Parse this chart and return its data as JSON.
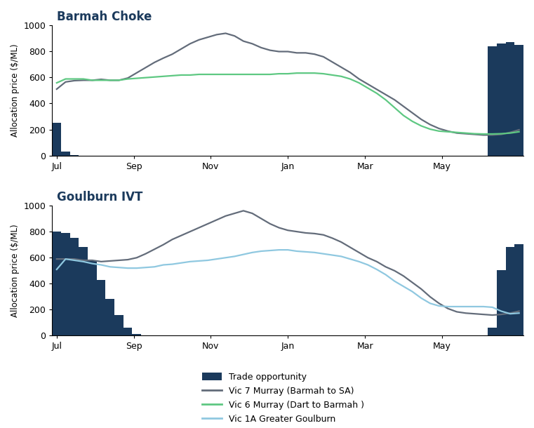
{
  "top_title": "Barmah Choke",
  "bottom_title": "Goulburn IVT",
  "ylabel": "Allocation price ($/ML)",
  "ylim": [
    0,
    1000
  ],
  "yticks": [
    0,
    200,
    400,
    600,
    800,
    1000
  ],
  "xtick_labels": [
    "Jul",
    "Sep",
    "Nov",
    "Jan",
    "Mar",
    "May"
  ],
  "n_weeks": 53,
  "bar_color": "#1b3a5c",
  "line1_color": "#636c7a",
  "line2_color": "#5ec882",
  "line3_color": "#8fc8e0",
  "trade_opp_top": [
    250,
    30,
    5,
    0,
    0,
    0,
    0,
    0,
    0,
    0,
    0,
    0,
    0,
    0,
    0,
    0,
    0,
    0,
    0,
    0,
    0,
    0,
    0,
    0,
    0,
    0,
    0,
    0,
    0,
    0,
    0,
    0,
    0,
    0,
    0,
    0,
    0,
    0,
    0,
    0,
    0,
    0,
    0,
    0,
    0,
    0,
    0,
    0,
    0,
    840,
    860,
    870,
    850
  ],
  "trade_opp_bottom": [
    800,
    790,
    750,
    680,
    580,
    430,
    280,
    160,
    60,
    15,
    0,
    0,
    0,
    0,
    0,
    0,
    0,
    0,
    0,
    0,
    0,
    0,
    0,
    0,
    0,
    0,
    0,
    0,
    0,
    0,
    0,
    0,
    0,
    0,
    0,
    0,
    0,
    0,
    0,
    0,
    0,
    0,
    0,
    0,
    0,
    0,
    0,
    0,
    0,
    60,
    500,
    680,
    700
  ],
  "vic7_top": [
    510,
    565,
    575,
    578,
    578,
    585,
    578,
    578,
    595,
    635,
    675,
    715,
    748,
    778,
    818,
    858,
    888,
    908,
    928,
    938,
    918,
    878,
    858,
    828,
    808,
    798,
    798,
    788,
    788,
    778,
    758,
    718,
    678,
    638,
    588,
    548,
    508,
    468,
    428,
    378,
    328,
    278,
    238,
    208,
    188,
    173,
    168,
    163,
    158,
    158,
    163,
    178,
    198
  ],
  "vic6_top": [
    558,
    588,
    588,
    588,
    578,
    578,
    578,
    578,
    588,
    593,
    598,
    603,
    608,
    613,
    618,
    618,
    623,
    623,
    623,
    623,
    623,
    623,
    623,
    623,
    623,
    628,
    628,
    633,
    633,
    633,
    628,
    618,
    608,
    588,
    558,
    518,
    478,
    428,
    368,
    308,
    263,
    228,
    203,
    188,
    183,
    178,
    173,
    168,
    166,
    166,
    168,
    173,
    183
  ],
  "vic7_bottom": [
    588,
    588,
    588,
    578,
    578,
    568,
    573,
    578,
    583,
    598,
    628,
    663,
    698,
    738,
    768,
    798,
    828,
    858,
    888,
    918,
    938,
    958,
    938,
    898,
    858,
    828,
    808,
    798,
    788,
    783,
    773,
    748,
    718,
    678,
    638,
    598,
    568,
    528,
    498,
    458,
    408,
    358,
    298,
    248,
    208,
    183,
    173,
    168,
    163,
    158,
    163,
    173,
    188
  ],
  "vic1a_bottom": [
    508,
    588,
    578,
    568,
    553,
    543,
    528,
    523,
    518,
    518,
    523,
    528,
    543,
    548,
    558,
    568,
    573,
    578,
    588,
    598,
    608,
    623,
    638,
    648,
    653,
    658,
    658,
    648,
    643,
    638,
    628,
    618,
    608,
    588,
    568,
    543,
    508,
    468,
    418,
    378,
    338,
    288,
    248,
    228,
    223,
    223,
    223,
    223,
    223,
    218,
    188,
    168,
    173
  ],
  "legend_labels": [
    "Trade opportunity",
    "Vic 7 Murray (Barmah to SA)",
    "Vic 6 Murray (Dart to Barmah )",
    "Vic 1A Greater Goulburn"
  ],
  "legend_colors": [
    "#1b3a5c",
    "#636c7a",
    "#5ec882",
    "#8fc8e0"
  ],
  "figsize": [
    7.61,
    6.1
  ],
  "dpi": 100
}
